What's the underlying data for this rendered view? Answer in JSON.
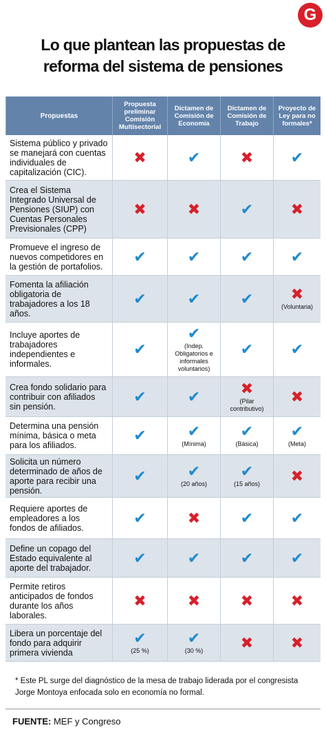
{
  "logo": "G",
  "header": {
    "title_lines": [
      "Lo que plantean las propuestas de",
      "reforma del sistema de pensiones"
    ]
  },
  "table": {
    "columns": [
      "Propuestas",
      "Propuesta preliminar Comisión Multisectorial",
      "Dictamen de Comisión de Economía",
      "Dictamen de Comisión de Trabajo",
      "Proyecto de Ley para no formales*"
    ],
    "rows": [
      {
        "proposal": "Sistema público y privado se manejará con cuentas individuales de capitalización (CIC).",
        "cells": [
          {
            "symbol": "✖",
            "color": "#d7202b"
          },
          {
            "symbol": "✔",
            "color": "#1e8ad0"
          },
          {
            "symbol": "✖",
            "color": "#d7202b"
          },
          {
            "symbol": "✔",
            "color": "#1e8ad0"
          }
        ]
      },
      {
        "proposal": "Crea el Sistema Integrado Universal de Pensiones (SIUP) con Cuentas Personales Previsionales (CPP)",
        "cells": [
          {
            "symbol": "✖",
            "color": "#d7202b"
          },
          {
            "symbol": "✖",
            "color": "#d7202b"
          },
          {
            "symbol": "✔",
            "color": "#1e8ad0"
          },
          {
            "symbol": "✖",
            "color": "#d7202b"
          }
        ]
      },
      {
        "proposal": "Promueve el ingreso de nuevos competidores en la gestión de portafolios.",
        "cells": [
          {
            "symbol": "✔",
            "color": "#1e8ad0"
          },
          {
            "symbol": "✔",
            "color": "#1e8ad0"
          },
          {
            "symbol": "✔",
            "color": "#1e8ad0"
          },
          {
            "symbol": "✔",
            "color": "#1e8ad0"
          }
        ]
      },
      {
        "proposal": "Fomenta la afiliación obligatoria de trabajadores a los 18 años.",
        "cells": [
          {
            "symbol": "✔",
            "color": "#1e8ad0"
          },
          {
            "symbol": "✔",
            "color": "#1e8ad0"
          },
          {
            "symbol": "✔",
            "color": "#1e8ad0"
          },
          {
            "symbol": "✖",
            "color": "#d7202b",
            "note": "(Voluntaria)"
          }
        ]
      },
      {
        "proposal": "Incluye aportes de trabajadores independientes e informales.",
        "cells": [
          {
            "symbol": "✔",
            "color": "#1e8ad0"
          },
          {
            "symbol": "✔",
            "color": "#1e8ad0",
            "note": "(Indep. Obligatorios e informales voluntarios)"
          },
          {
            "symbol": "✔",
            "color": "#1e8ad0"
          },
          {
            "symbol": "✔",
            "color": "#1e8ad0"
          }
        ]
      },
      {
        "proposal": "Crea fondo solidario para contribuir con afiliados sin pensión.",
        "cells": [
          {
            "symbol": "✔",
            "color": "#1e8ad0"
          },
          {
            "symbol": "✔",
            "color": "#1e8ad0"
          },
          {
            "symbol": "✖",
            "color": "#d7202b",
            "note": "(Pilar contributivo)"
          },
          {
            "symbol": "✖",
            "color": "#d7202b"
          }
        ]
      },
      {
        "proposal": "Determina una pensión mínima, básica o meta para los afiliados.",
        "cells": [
          {
            "symbol": "✔",
            "color": "#1e8ad0"
          },
          {
            "symbol": "✔",
            "color": "#1e8ad0",
            "note": "(Mínima)"
          },
          {
            "symbol": "✔",
            "color": "#1e8ad0",
            "note": "(Básica)"
          },
          {
            "symbol": "✔",
            "color": "#1e8ad0",
            "note": "(Meta)"
          }
        ]
      },
      {
        "proposal": "Solicita un número determinado de años de aporte para recibir una pensión.",
        "cells": [
          {
            "symbol": "✔",
            "color": "#1e8ad0"
          },
          {
            "symbol": "✔",
            "color": "#1e8ad0",
            "note": "(20 años)"
          },
          {
            "symbol": "✔",
            "color": "#1e8ad0",
            "note": "(15 años)"
          },
          {
            "symbol": "✖",
            "color": "#d7202b"
          }
        ]
      },
      {
        "proposal": "Requiere aportes de empleadores a los fondos de afiliados.",
        "cells": [
          {
            "symbol": "✔",
            "color": "#1e8ad0"
          },
          {
            "symbol": "✖",
            "color": "#d7202b"
          },
          {
            "symbol": "✔",
            "color": "#1e8ad0"
          },
          {
            "symbol": "✔",
            "color": "#1e8ad0"
          }
        ]
      },
      {
        "proposal": "Define un copago del Estado equivalente al aporte del trabajador.",
        "cells": [
          {
            "symbol": "✔",
            "color": "#1e8ad0"
          },
          {
            "symbol": "✔",
            "color": "#1e8ad0"
          },
          {
            "symbol": "✔",
            "color": "#1e8ad0"
          },
          {
            "symbol": "✔",
            "color": "#1e8ad0"
          }
        ]
      },
      {
        "proposal": "Permite retiros anticipados de fondos durante los años laborales.",
        "cells": [
          {
            "symbol": "✖",
            "color": "#d7202b"
          },
          {
            "symbol": "✖",
            "color": "#d7202b"
          },
          {
            "symbol": "✖",
            "color": "#d7202b"
          },
          {
            "symbol": "✖",
            "color": "#d7202b"
          }
        ]
      },
      {
        "proposal": "Libera un porcentaje del fondo para adquirir primera vivienda",
        "cells": [
          {
            "symbol": "✔",
            "color": "#1e8ad0",
            "note": "(25 %)"
          },
          {
            "symbol": "✔",
            "color": "#1e8ad0",
            "note": "(30 %)"
          },
          {
            "symbol": "✖",
            "color": "#d7202b"
          },
          {
            "symbol": "✖",
            "color": "#d7202b"
          }
        ]
      }
    ]
  },
  "footnote": "* Este PL surge del diagnóstico de la mesa de trabajo liderada por el congresista Jorge Montoya enfocada solo en economía no formal.",
  "source": {
    "label": "FUENTE:",
    "text": "MEF y Congreso"
  }
}
